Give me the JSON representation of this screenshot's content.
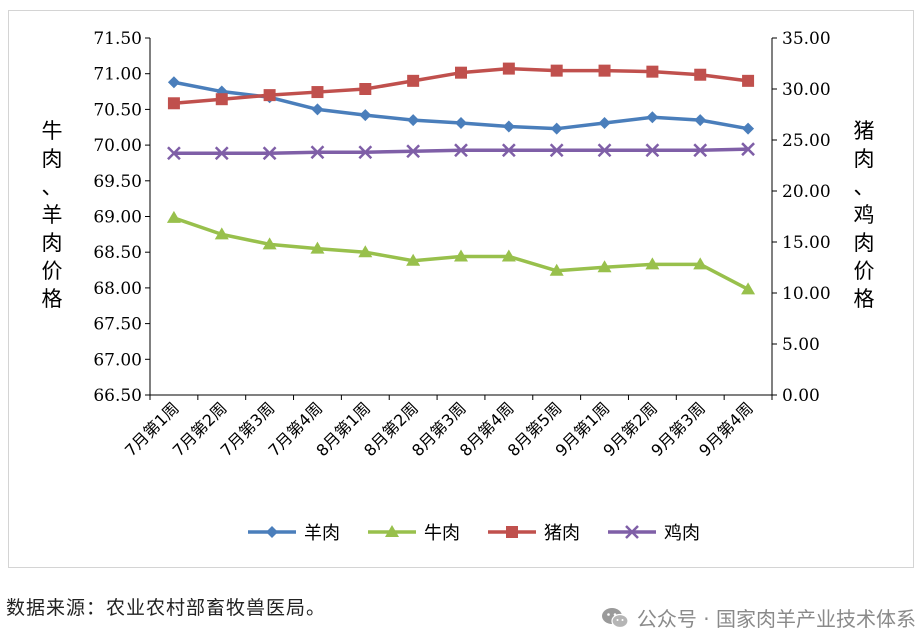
{
  "chart_data": {
    "type": "line",
    "title": "",
    "categories": [
      "7月第1周",
      "7月第2周",
      "7月第3周",
      "7月第4周",
      "8月第1周",
      "8月第2周",
      "8月第3周",
      "8月第4周",
      "8月第5周",
      "9月第1周",
      "9月第2周",
      "9月第3周",
      "9月第4周"
    ],
    "ylabel_left": "牛肉、羊肉价格",
    "ylabel_right": "猪肉、鸡肉价格",
    "ylim_left": [
      66.5,
      71.5
    ],
    "ylim_right": [
      0,
      35
    ],
    "yticks_left": [
      "66.50",
      "67.00",
      "67.50",
      "68.00",
      "68.50",
      "69.00",
      "69.50",
      "70.00",
      "70.50",
      "71.00",
      "71.50"
    ],
    "yticks_right": [
      "0.00",
      "5.00",
      "10.00",
      "15.00",
      "20.00",
      "25.00",
      "30.00",
      "35.00"
    ],
    "series": [
      {
        "name": "羊肉",
        "axis": "left",
        "color": "#4a7ebb",
        "marker": "diamond",
        "values": [
          70.88,
          70.75,
          70.67,
          70.5,
          70.42,
          70.35,
          70.31,
          70.26,
          70.23,
          70.31,
          70.39,
          70.35,
          70.23
        ]
      },
      {
        "name": "牛肉",
        "axis": "left",
        "color": "#98c04c",
        "marker": "triangle",
        "values": [
          68.98,
          68.75,
          68.61,
          68.55,
          68.5,
          68.38,
          68.44,
          68.44,
          68.24,
          68.29,
          68.33,
          68.33,
          67.98
        ]
      },
      {
        "name": "猪肉",
        "axis": "right",
        "color": "#c0504d",
        "marker": "square",
        "values": [
          28.6,
          29.0,
          29.4,
          29.7,
          30.0,
          30.8,
          31.6,
          32.0,
          31.8,
          31.8,
          31.7,
          31.4,
          30.8
        ]
      },
      {
        "name": "鸡肉",
        "axis": "right",
        "color": "#7f5fa7",
        "marker": "x",
        "values": [
          23.7,
          23.7,
          23.7,
          23.8,
          23.8,
          23.9,
          24.0,
          24.0,
          24.0,
          24.0,
          24.0,
          24.0,
          24.1
        ]
      }
    ],
    "legend": "bottom",
    "grid": false
  },
  "footer": {
    "source_note": "数据来源：农业农村部畜牧兽医局。",
    "watermark": "公众号 · 国家肉羊产业技术体系"
  }
}
